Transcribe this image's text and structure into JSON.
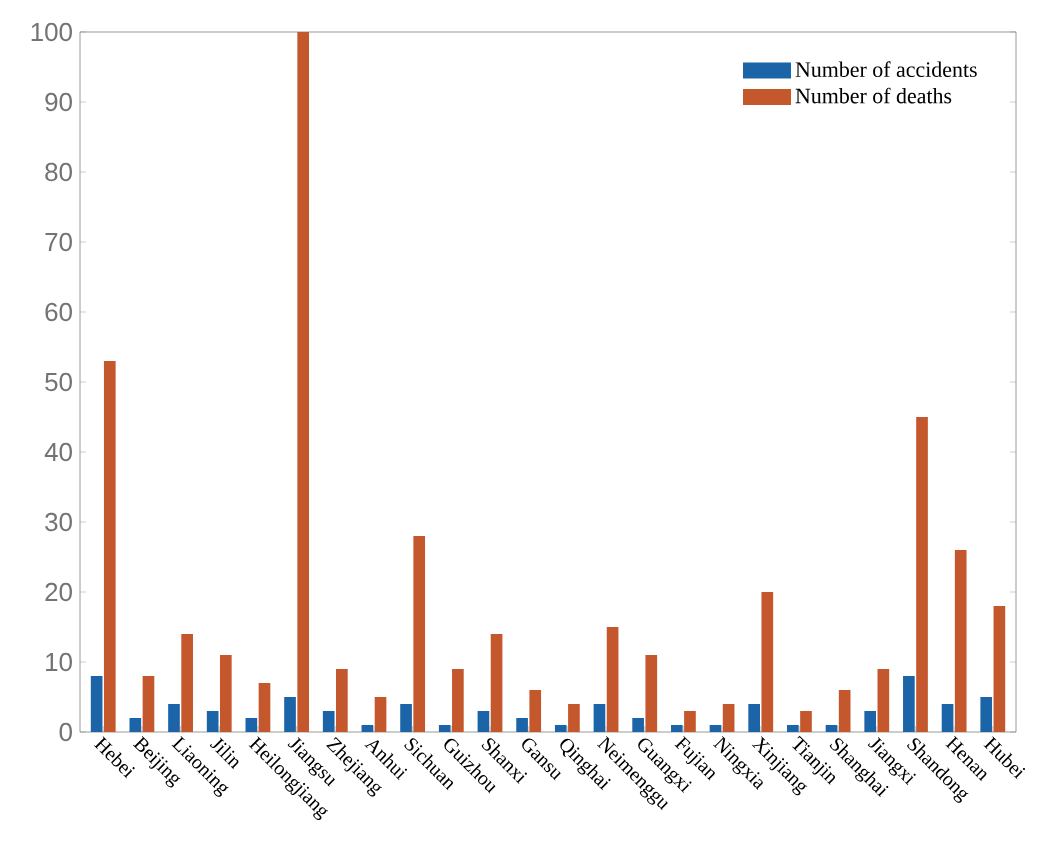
{
  "chart_data": {
    "type": "bar",
    "categories": [
      "Hebei",
      "Beijing",
      "Liaoning",
      "Jilin",
      "Heilongjiang",
      "Jiangsu",
      "Zhejiang",
      "Anhui",
      "Sichuan",
      "Guizhou",
      "Shanxi",
      "Gansu",
      "Qinghai",
      "Neimenggu",
      "Guangxi",
      "Fujian",
      "Ningxia",
      "Xinjiang",
      "Tianjin",
      "Shanghai",
      "Jiangxi",
      "Shandong",
      "Henan",
      "Hubei"
    ],
    "series": [
      {
        "name": "Number of accidents",
        "color": "#1b64a8",
        "values": [
          8,
          2,
          4,
          3,
          2,
          5,
          3,
          1,
          4,
          1,
          3,
          2,
          1,
          4,
          2,
          1,
          1,
          4,
          1,
          1,
          3,
          8,
          4,
          5
        ]
      },
      {
        "name": "Number of deaths",
        "color": "#c4572b",
        "values": [
          53,
          8,
          14,
          11,
          7,
          100,
          9,
          5,
          28,
          9,
          14,
          6,
          4,
          15,
          11,
          3,
          4,
          20,
          3,
          6,
          9,
          45,
          26,
          18
        ]
      }
    ],
    "ylim": [
      0,
      100
    ],
    "yticks": [
      0,
      10,
      20,
      30,
      40,
      50,
      60,
      70,
      80,
      90,
      100
    ],
    "legend": "top right"
  }
}
